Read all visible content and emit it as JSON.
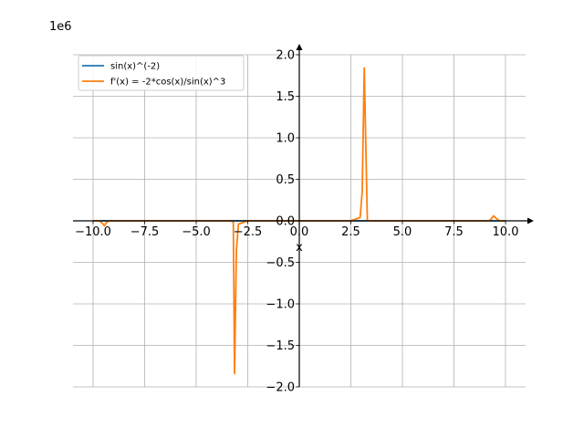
{
  "chart_data": {
    "type": "line",
    "title": "",
    "xlabel": "x",
    "ylabel": "",
    "y_scale_label": "1e6",
    "xlim": [
      -11.0,
      11.5
    ],
    "ylim": [
      -2.0,
      2.0
    ],
    "x_ticks": [
      -10.0,
      -7.5,
      -5.0,
      -2.5,
      0.0,
      2.5,
      5.0,
      7.5,
      10.0
    ],
    "x_tick_labels": [
      "−10.0",
      "−7.5",
      "−5.0",
      "−2.5",
      "0.0",
      "2.5",
      "5.0",
      "7.5",
      "10.0"
    ],
    "y_ticks": [
      -2.0,
      -1.5,
      -1.0,
      -0.5,
      0.0,
      0.5,
      1.0,
      1.5,
      2.0
    ],
    "y_tick_labels": [
      "−2.0",
      "−1.5",
      "−1.0",
      "−0.5",
      "0.0",
      "0.5",
      "1.0",
      "1.5",
      "2.0"
    ],
    "grid": true,
    "legend_position": "top-left",
    "series": [
      {
        "name": "sin(x)^(-2)",
        "color": "#1f77b4",
        "points": [
          [
            -10.0,
            0.0
          ],
          [
            -9.6,
            0.0
          ],
          [
            -9.5,
            0.0
          ],
          [
            -9.3,
            0.0
          ],
          [
            -9.0,
            0.0
          ],
          [
            -7.5,
            0.0
          ],
          [
            -5.0,
            0.0
          ],
          [
            -3.3,
            0.0
          ],
          [
            -3.2,
            0.0
          ],
          [
            -3.15,
            0.0
          ],
          [
            -3.1,
            0.0
          ],
          [
            -2.9,
            0.0
          ],
          [
            -2.5,
            0.0
          ],
          [
            0.0,
            0.0
          ],
          [
            2.5,
            0.0
          ],
          [
            2.9,
            0.0
          ],
          [
            3.05,
            0.0
          ],
          [
            3.15,
            0.0
          ],
          [
            3.3,
            0.0
          ],
          [
            5.0,
            0.0
          ],
          [
            7.5,
            0.0
          ],
          [
            9.2,
            0.0
          ],
          [
            9.4,
            0.0
          ],
          [
            9.6,
            0.0
          ],
          [
            10.0,
            0.0
          ]
        ]
      },
      {
        "name": "f'(x) = -2*cos(x)/sin(x)^3",
        "color": "#ff7f0e",
        "points": [
          [
            -10.0,
            0.0
          ],
          [
            -9.7,
            0.0
          ],
          [
            -9.55,
            -0.03
          ],
          [
            -9.45,
            -0.06
          ],
          [
            -9.35,
            -0.02
          ],
          [
            -9.2,
            0.0
          ],
          [
            -7.5,
            0.0
          ],
          [
            -5.0,
            0.0
          ],
          [
            -3.3,
            0.0
          ],
          [
            -3.2,
            -0.02
          ],
          [
            -3.14,
            -1.84
          ],
          [
            -3.05,
            -0.35
          ],
          [
            -2.95,
            -0.04
          ],
          [
            -2.5,
            0.0
          ],
          [
            0.0,
            0.0
          ],
          [
            2.5,
            0.0
          ],
          [
            2.95,
            0.04
          ],
          [
            3.05,
            0.35
          ],
          [
            3.15,
            1.84
          ],
          [
            3.3,
            0.0
          ],
          [
            5.0,
            0.0
          ],
          [
            7.5,
            0.0
          ],
          [
            9.2,
            0.0
          ],
          [
            9.3,
            0.02
          ],
          [
            9.42,
            0.06
          ],
          [
            9.55,
            0.03
          ],
          [
            9.7,
            0.0
          ],
          [
            10.0,
            0.0
          ]
        ]
      }
    ]
  }
}
